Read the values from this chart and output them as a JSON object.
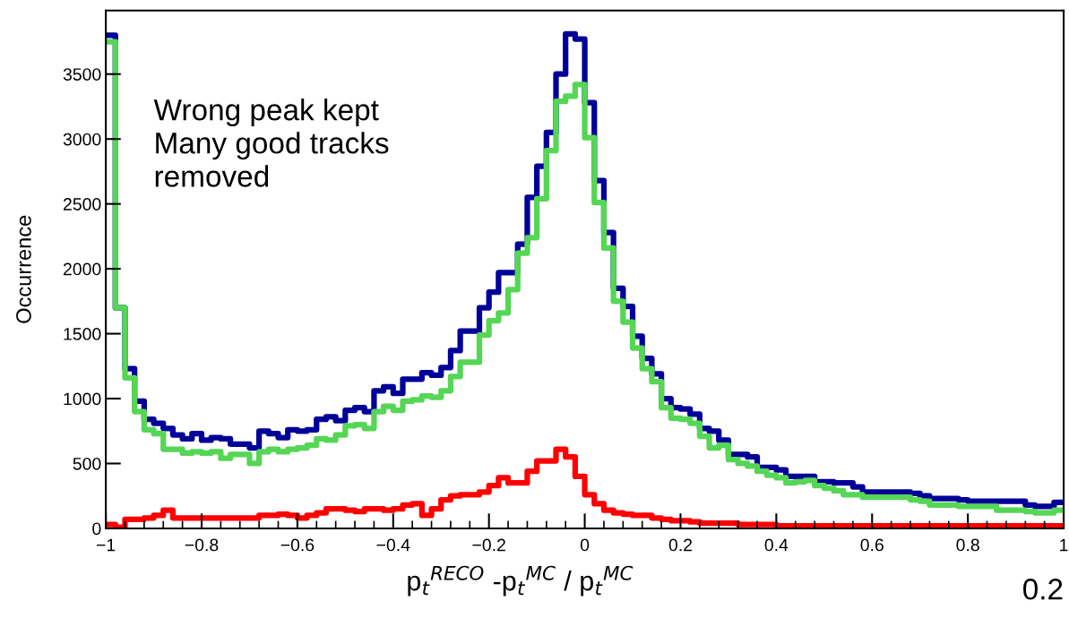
{
  "chart_data": {
    "type": "histogram",
    "xlabel": "p$_{t}$$^{RECO}$ -p$_{t}$$^{MC}$ / p$_{t}$$^{MC}$",
    "ylabel": "Occurrence",
    "annotations": [
      "Wrong peak kept\nMany good tracks\nremoved",
      "0.2"
    ],
    "bins": [
      -1,
      -0.98,
      -0.96,
      -0.94,
      -0.92,
      -0.9,
      -0.88,
      -0.86,
      -0.84,
      -0.82,
      -0.8,
      -0.78,
      -0.76,
      -0.74,
      -0.72,
      -0.7,
      -0.68,
      -0.66,
      -0.64,
      -0.62,
      -0.6,
      -0.58,
      -0.56,
      -0.54,
      -0.52,
      -0.5,
      -0.48,
      -0.46,
      -0.44,
      -0.42,
      -0.4,
      -0.38,
      -0.36,
      -0.34,
      -0.32,
      -0.3,
      -0.28,
      -0.26,
      -0.24,
      -0.22,
      -0.2,
      -0.18,
      -0.16,
      -0.14,
      -0.12,
      -0.1,
      -0.08,
      -0.06,
      -0.04,
      -0.02,
      0,
      0.02,
      0.04,
      0.06,
      0.08,
      0.1,
      0.12,
      0.14,
      0.16,
      0.18,
      0.2,
      0.22,
      0.24,
      0.26,
      0.28,
      0.3,
      0.32,
      0.34,
      0.36,
      0.38,
      0.4,
      0.42,
      0.44,
      0.46,
      0.48,
      0.5,
      0.52,
      0.54,
      0.56,
      0.58,
      0.6,
      0.62,
      0.64,
      0.66,
      0.68,
      0.7,
      0.72,
      0.74,
      0.76,
      0.78,
      0.8,
      0.82,
      0.84,
      0.86,
      0.88,
      0.9,
      0.92,
      0.94,
      0.96,
      0.98,
      1
    ],
    "series": [
      {
        "color": "#000099",
        "values": [
          3800,
          1700,
          1230,
          980,
          840,
          810,
          770,
          720,
          690,
          730,
          680,
          700,
          690,
          650,
          650,
          620,
          750,
          730,
          700,
          760,
          750,
          760,
          840,
          860,
          830,
          910,
          930,
          900,
          1060,
          1090,
          1040,
          1150,
          1150,
          1200,
          1180,
          1240,
          1370,
          1520,
          1520,
          1700,
          1820,
          1970,
          1970,
          2190,
          2550,
          2790,
          3050,
          3500,
          3810,
          3770,
          3280,
          2680,
          2280,
          1850,
          1710,
          1480,
          1310,
          1190,
          1000,
          930,
          920,
          880,
          770,
          750,
          680,
          570,
          570,
          550,
          470,
          470,
          450,
          400,
          400,
          400,
          360,
          360,
          350,
          350,
          320,
          280,
          280,
          280,
          280,
          280,
          270,
          250,
          230,
          230,
          230,
          220,
          210,
          210,
          210,
          210,
          210,
          210,
          180,
          170,
          170,
          200
        ]
      },
      {
        "color": "#55d655",
        "values": [
          3750,
          1700,
          1160,
          900,
          760,
          730,
          610,
          610,
          580,
          590,
          580,
          590,
          540,
          570,
          570,
          500,
          590,
          610,
          590,
          610,
          620,
          640,
          690,
          680,
          720,
          790,
          800,
          770,
          900,
          940,
          910,
          980,
          990,
          1020,
          1010,
          1060,
          1170,
          1280,
          1280,
          1490,
          1600,
          1660,
          1840,
          2120,
          2240,
          2540,
          2910,
          3290,
          3330,
          3420,
          3010,
          2510,
          2160,
          1750,
          1590,
          1390,
          1230,
          1130,
          930,
          850,
          840,
          810,
          710,
          620,
          640,
          530,
          500,
          480,
          440,
          410,
          390,
          350,
          360,
          370,
          330,
          310,
          290,
          260,
          260,
          240,
          240,
          240,
          240,
          240,
          220,
          210,
          180,
          180,
          180,
          170,
          170,
          170,
          170,
          140,
          140,
          140,
          130,
          120,
          120,
          140
        ]
      },
      {
        "color": "#ff0000",
        "values": [
          30,
          10,
          70,
          70,
          80,
          100,
          140,
          80,
          80,
          80,
          80,
          80,
          80,
          80,
          80,
          80,
          100,
          100,
          110,
          100,
          80,
          100,
          120,
          150,
          150,
          140,
          130,
          150,
          150,
          140,
          150,
          180,
          190,
          100,
          150,
          220,
          250,
          260,
          260,
          280,
          330,
          390,
          350,
          350,
          440,
          520,
          520,
          610,
          550,
          400,
          260,
          190,
          140,
          120,
          110,
          100,
          100,
          80,
          70,
          60,
          60,
          50,
          40,
          40,
          40,
          40,
          30,
          30,
          30,
          30,
          20,
          20,
          20,
          20,
          20,
          20,
          20,
          20,
          20,
          20,
          20,
          20,
          20,
          20,
          20,
          20,
          20,
          20,
          20,
          20,
          20,
          20,
          20,
          20,
          20,
          20,
          20,
          20,
          20,
          20
        ]
      }
    ],
    "xlim": [
      -1,
      1
    ],
    "xticks": [
      {
        "value": -1,
        "label": "−1"
      },
      {
        "value": -0.8,
        "label": "−0.8"
      },
      {
        "value": -0.6,
        "label": "−0.6"
      },
      {
        "value": -0.4,
        "label": "−0.4"
      },
      {
        "value": -0.2,
        "label": "−0.2"
      },
      0,
      0.2,
      0.4,
      0.6,
      0.8,
      1
    ],
    "ylim": [
      0,
      3990
    ],
    "yticks": [
      0,
      500,
      1000,
      1500,
      2000,
      2500,
      3000,
      3500
    ],
    "grid": false
  }
}
